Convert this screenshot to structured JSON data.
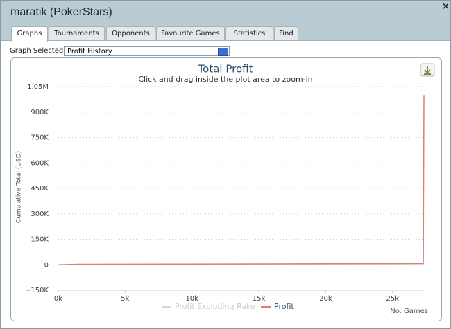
{
  "window": {
    "title": "maratik (PokerStars)",
    "close": "×"
  },
  "tabs": [
    "Graphs",
    "Tournaments",
    "Opponents",
    "Favourite Games",
    "Statistics",
    "Find"
  ],
  "graph_selector": {
    "label": "Graph Selected:",
    "value": "Profit History"
  },
  "chart_data": {
    "type": "line",
    "title": "Total Profit",
    "subtitle": "Click and drag inside the plot area to zoom-in",
    "x_label": "No. Games",
    "y_label": "Cumulative Total (USD)",
    "x": [
      0,
      1500,
      5000,
      10000,
      15000,
      20000,
      25000,
      27300,
      27350
    ],
    "series": [
      {
        "name": "Profit Excluding Rake",
        "color": "#d8d8d8",
        "values": [
          0,
          1000,
          1500,
          2000,
          2500,
          3000,
          3500,
          4000,
          4000
        ]
      },
      {
        "name": "Profit",
        "color": "#d97f78",
        "values": [
          0,
          3000,
          3500,
          4000,
          5000,
          6000,
          7000,
          8000,
          1000000
        ]
      }
    ],
    "xlim": [
      0,
      27400
    ],
    "ylim": [
      -150000,
      1050000
    ],
    "xticks": [
      {
        "value": 0,
        "label": "0k"
      },
      {
        "value": 5000,
        "label": "5k"
      },
      {
        "value": 10000,
        "label": "10k"
      },
      {
        "value": 15000,
        "label": "15k"
      },
      {
        "value": 20000,
        "label": "20k"
      },
      {
        "value": 25000,
        "label": "25k"
      }
    ],
    "yticks": [
      {
        "value": -150000,
        "label": "−150K"
      },
      0,
      {
        "value": 150000,
        "label": "150K"
      },
      {
        "value": 300000,
        "label": "300K"
      },
      {
        "value": 450000,
        "label": "450K"
      },
      {
        "value": 600000,
        "label": "600K"
      },
      {
        "value": 750000,
        "label": "750K"
      },
      {
        "value": 900000,
        "label": "900K"
      },
      {
        "value": 1050000,
        "label": "1.05M"
      }
    ],
    "grid": true
  }
}
